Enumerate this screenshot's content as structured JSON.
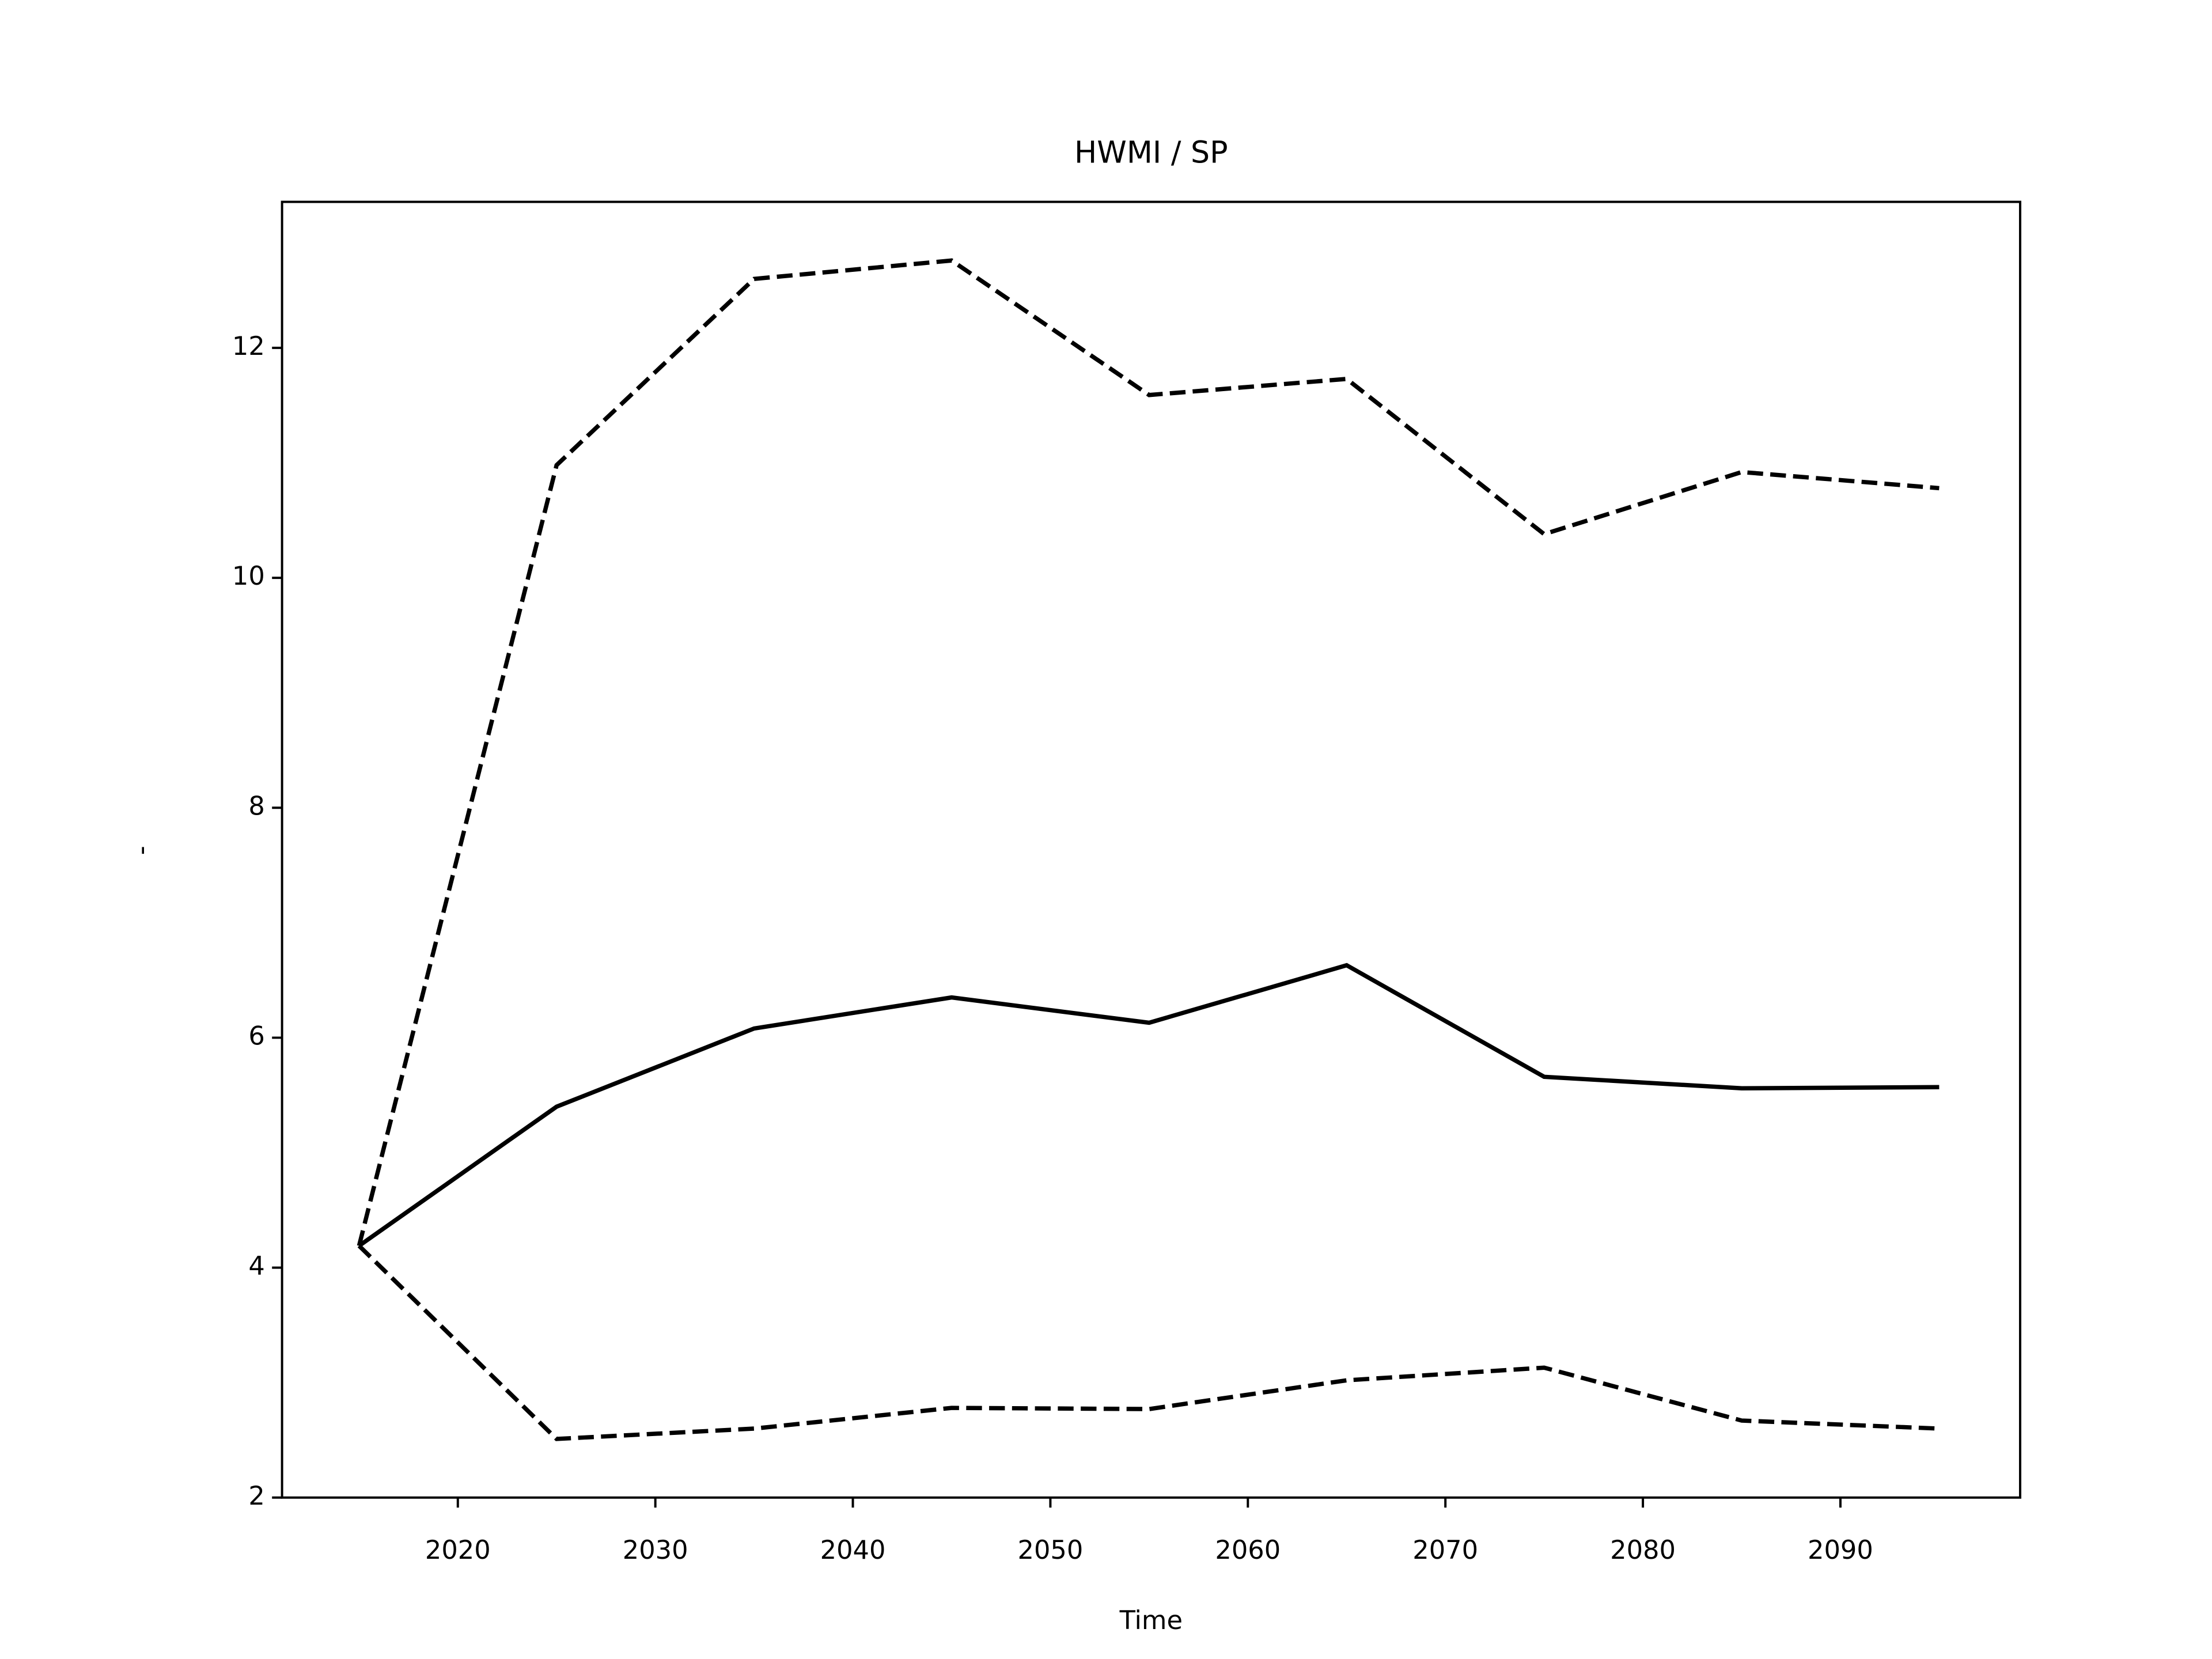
{
  "chart_data": {
    "type": "line",
    "title": "HWMI / SP",
    "xlabel": "Time",
    "ylabel": "-",
    "x": [
      2015,
      2025,
      2035,
      2045,
      2055,
      2065,
      2075,
      2085,
      2095
    ],
    "series": [
      {
        "color": "#000000",
        "linestyle": "solid",
        "values": [
          4.19,
          5.4,
          6.08,
          6.35,
          6.13,
          6.63,
          5.66,
          5.56,
          5.57
        ]
      },
      {
        "color": "#000000",
        "linestyle": "dashed",
        "values": [
          4.19,
          10.98,
          12.6,
          12.76,
          11.59,
          11.73,
          10.38,
          10.92,
          10.78
        ]
      },
      {
        "color": "#000000",
        "linestyle": "dashed",
        "values": [
          4.19,
          2.51,
          2.6,
          2.78,
          2.77,
          3.02,
          3.13,
          2.67,
          2.6
        ]
      }
    ],
    "xlim": [
      2011.1,
      2099.1
    ],
    "ylim": [
      2,
      13.27
    ],
    "xticks": [
      2020,
      2030,
      2040,
      2050,
      2060,
      2070,
      2080,
      2090
    ],
    "yticks": [
      2,
      4,
      6,
      8,
      10,
      12
    ],
    "grid": false
  }
}
